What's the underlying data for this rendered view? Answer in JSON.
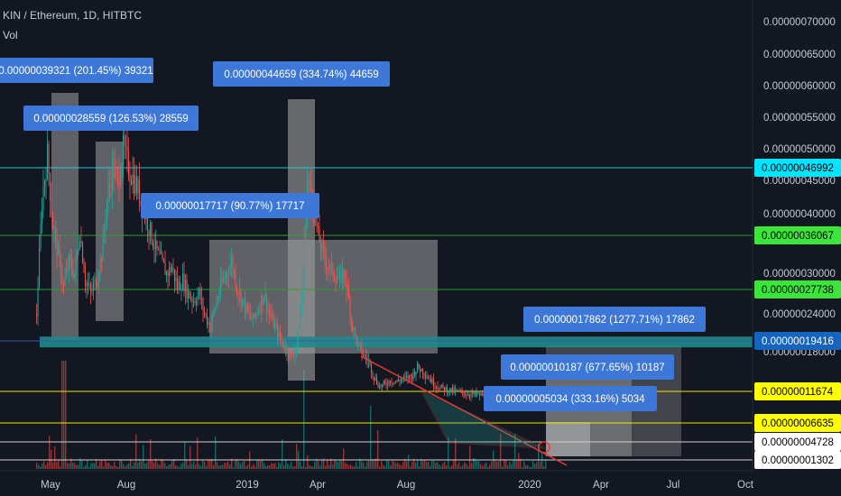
{
  "header": {
    "symbol_line": "KIN / Ethereum, 1D, HITBTC",
    "volume_label": "Vol"
  },
  "colors": {
    "background": "#131722",
    "candle_up": "#26a69a",
    "candle_down": "#ef5350",
    "range_box": "#9e9e9e",
    "annotation_box": "#3d78d8",
    "trendline": "#e53935",
    "support_band": "#1f8a8a"
  },
  "chart_data": {
    "type": "candlestick",
    "title": "KIN / Ethereum, 1D, HITBTC",
    "y_scale": "linear",
    "ylim": [
      8e-09,
      7.3e-08
    ],
    "y_ticks": [
      "0.00000070000",
      "0.00000065000",
      "0.00000060000",
      "0.00000055000",
      "0.00000050000",
      "0.00000045000",
      "0.00000040000",
      "0.00000030000",
      "0.00000024000",
      "0.00000018000"
    ],
    "x_ticks": [
      "May",
      "Aug",
      "2019",
      "Apr",
      "Aug",
      "2020",
      "Apr",
      "Jul",
      "Oct"
    ],
    "horizontal_levels": [
      {
        "value": "0.00000046992",
        "price": 4.7e-08,
        "line_color": "#26c6da",
        "badge_bg": "#00e5ff",
        "badge_fg": "#000000"
      },
      {
        "value": "0.00000036067",
        "price": 3.61e-08,
        "line_color": "#2e9e2e",
        "badge_bg": "#39e639",
        "badge_fg": "#000000"
      },
      {
        "value": "0.00000027738",
        "price": 2.77e-08,
        "line_color": "#2e9e2e",
        "badge_bg": "#39e639",
        "badge_fg": "#000000"
      },
      {
        "value": "0.00000019416",
        "price": 1.94e-08,
        "line_color": "#3f51b5",
        "badge_bg": "#1565c0",
        "badge_fg": "#ffffff"
      },
      {
        "value": "0.00000011674",
        "price": 1.17e-08,
        "line_color": "#f2e400",
        "badge_bg": "#ffff00",
        "badge_fg": "#000000"
      },
      {
        "value": "0.00000006635",
        "price": 6.6e-09,
        "line_color": "#f2e400",
        "badge_bg": "#ffff00",
        "badge_fg": "#000000"
      },
      {
        "value": "0.00000004728",
        "price": 4.7e-09,
        "line_color": "#cfcfcf",
        "badge_bg": "#ffffff",
        "badge_fg": "#000000"
      },
      {
        "value": "0.00000001302",
        "price": 1.3e-09,
        "line_color": "#cfcfcf",
        "badge_bg": "#ffffff",
        "badge_fg": "#000000"
      }
    ],
    "annotations": [
      {
        "text": "0.00000039321 (201.45%) 39321",
        "pct": 201.45
      },
      {
        "text": "0.00000028559 (126.53%) 28559",
        "pct": 126.53
      },
      {
        "text": "0.00000044659 (334.74%) 44659",
        "pct": 334.74
      },
      {
        "text": "0.00000017717 (90.77%) 17717",
        "pct": 90.77
      },
      {
        "text": "0.00000017862 (1277.71%) 17862",
        "pct": 1277.71
      },
      {
        "text": "0.00000010187 (677.65%) 10187",
        "pct": 677.65
      },
      {
        "text": "0.00000005034 (333.16%) 5034",
        "pct": 333.16
      }
    ],
    "series": [
      {
        "type": "candles",
        "note_values": "approximate closing path"
      },
      {
        "type": "volume"
      }
    ]
  }
}
